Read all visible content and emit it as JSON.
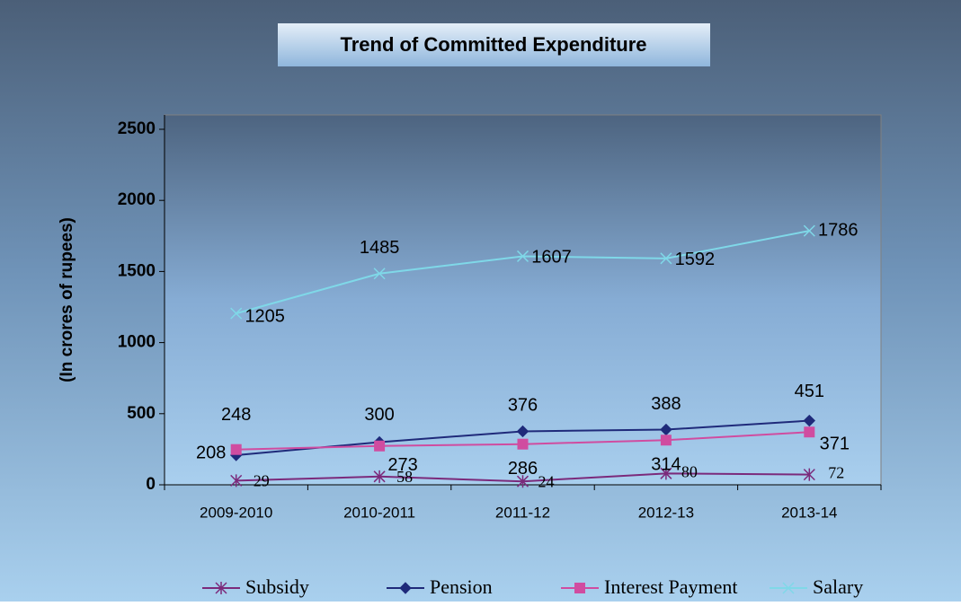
{
  "chart_data": {
    "type": "line",
    "title": "Trend of Committed Expenditure",
    "y_label": "(In crores of rupees)",
    "categories": [
      "2009-2010",
      "2010-2011",
      "2011-12",
      "2012-13",
      "2013-14"
    ],
    "ylim": [
      0,
      2500
    ],
    "yticks": [
      0,
      500,
      1000,
      1500,
      2000,
      2500
    ],
    "legend": "bottom",
    "series": [
      {
        "name": "Subsidy",
        "color": "#7b2a7b",
        "marker": "star",
        "values": [
          29,
          58,
          24,
          80,
          72
        ]
      },
      {
        "name": "Pension",
        "color": "#1f2a7a",
        "marker": "diamond",
        "values": [
          208,
          300,
          376,
          388,
          451
        ]
      },
      {
        "name": "Interest Payment",
        "color": "#d04ca0",
        "marker": "square",
        "values": [
          248,
          273,
          286,
          314,
          371
        ]
      },
      {
        "name": "Salary",
        "color": "#7fd8e8",
        "marker": "x",
        "values": [
          1205,
          1485,
          1607,
          1592,
          1786
        ]
      }
    ]
  }
}
